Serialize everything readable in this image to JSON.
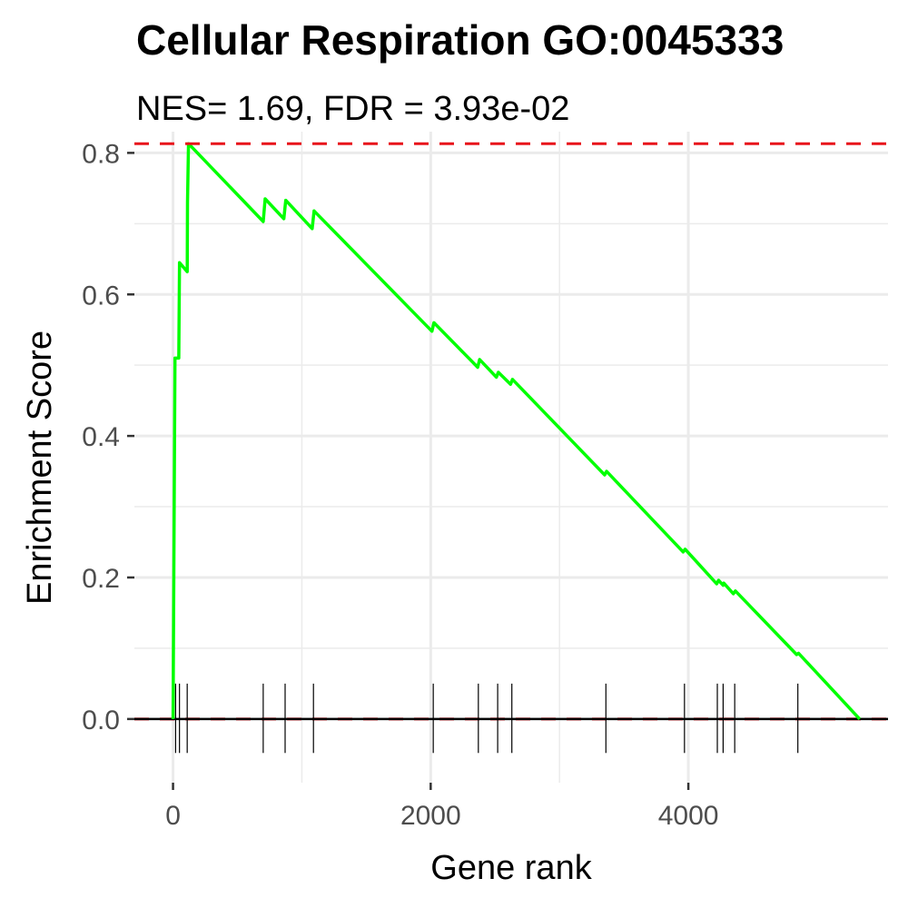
{
  "chart_data": {
    "type": "line",
    "title": "Cellular Respiration GO:0045333",
    "subtitle": "NES= 1.69, FDR = 3.93e-02",
    "xlabel": "Gene rank",
    "ylabel": "Enrichment Score",
    "xlim": [
      -300,
      5550
    ],
    "ylim": [
      -0.09,
      0.83
    ],
    "x_ticks": [
      0,
      2000,
      4000
    ],
    "x_tick_labels": [
      "0",
      "2000",
      "4000"
    ],
    "y_ticks": [
      0.0,
      0.2,
      0.4,
      0.6,
      0.8
    ],
    "y_tick_labels": [
      "0.0",
      "0.2",
      "0.4",
      "0.6",
      "0.8"
    ],
    "grid": true,
    "max_es": 0.813,
    "colors": {
      "curve": "#00ff00",
      "max_line": "#e8141b",
      "zero_dash": "#e8141b",
      "zero_line": "#000000",
      "hits": "#000000",
      "grid": "#ebebeb"
    },
    "series": [
      {
        "values": [
          [
            0,
            0.0
          ],
          [
            15,
            0.51
          ],
          [
            30,
            0.51
          ],
          [
            45,
            0.51
          ],
          [
            50,
            0.645
          ],
          [
            110,
            0.632
          ],
          [
            112,
            0.73
          ],
          [
            120,
            0.813
          ],
          [
            700,
            0.703
          ],
          [
            715,
            0.735
          ],
          [
            860,
            0.707
          ],
          [
            875,
            0.733
          ],
          [
            1080,
            0.693
          ],
          [
            1095,
            0.718
          ],
          [
            2010,
            0.548
          ],
          [
            2025,
            0.56
          ],
          [
            2365,
            0.497
          ],
          [
            2380,
            0.508
          ],
          [
            2510,
            0.483
          ],
          [
            2525,
            0.49
          ],
          [
            2620,
            0.473
          ],
          [
            2635,
            0.48
          ],
          [
            3350,
            0.345
          ],
          [
            3365,
            0.35
          ],
          [
            3960,
            0.236
          ],
          [
            3975,
            0.24
          ],
          [
            4220,
            0.191
          ],
          [
            4235,
            0.196
          ],
          [
            4270,
            0.189
          ],
          [
            4275,
            0.192
          ],
          [
            4350,
            0.177
          ],
          [
            4365,
            0.181
          ],
          [
            4840,
            0.091
          ],
          [
            4855,
            0.093
          ],
          [
            5330,
            0.0
          ]
        ]
      }
    ],
    "hits": [
      20,
      50,
      110,
      700,
      870,
      1090,
      2020,
      2370,
      2520,
      2630,
      3360,
      3970,
      4225,
      4270,
      4360,
      4850
    ]
  }
}
